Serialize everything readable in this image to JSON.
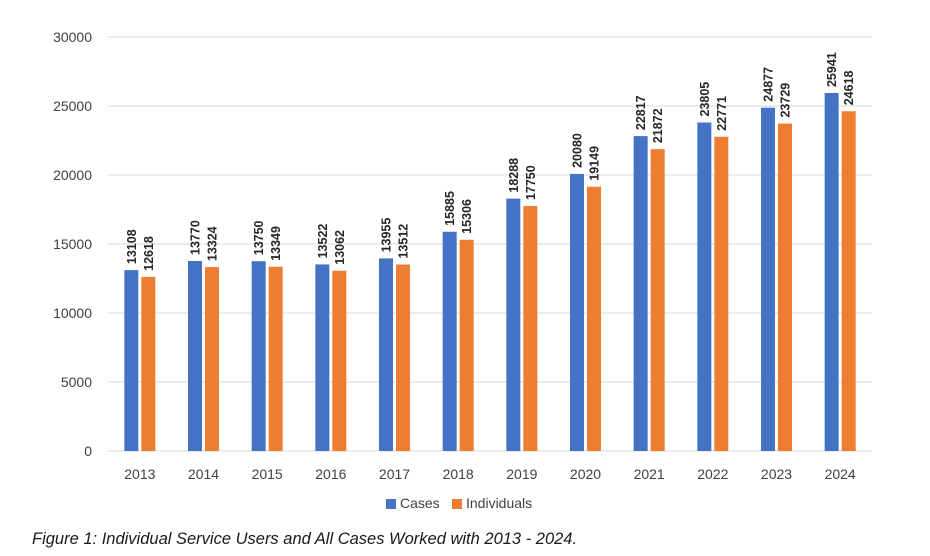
{
  "caption": "Figure 1: Individual Service Users and All Cases Worked with 2013 - 2024.",
  "colors": {
    "cases": "#4472C4",
    "individuals": "#ED7D31",
    "grid": "#D9D9D9"
  },
  "chart_data": {
    "type": "bar",
    "categories": [
      "2013",
      "2014",
      "2015",
      "2016",
      "2017",
      "2018",
      "2019",
      "2020",
      "2021",
      "2022",
      "2023",
      "2024"
    ],
    "series": [
      {
        "name": "Cases",
        "values": [
          13108,
          13770,
          13750,
          13522,
          13955,
          15885,
          18288,
          20080,
          22817,
          23805,
          24877,
          25941
        ]
      },
      {
        "name": "Individuals",
        "values": [
          12618,
          13324,
          13349,
          13062,
          13512,
          15306,
          17750,
          19149,
          21872,
          22771,
          23729,
          24618
        ]
      }
    ],
    "ylim": [
      0,
      30000
    ],
    "yticks": [
      0,
      5000,
      10000,
      15000,
      20000,
      25000,
      30000
    ],
    "grid": true,
    "legend_position": "bottom",
    "data_labels": true
  }
}
